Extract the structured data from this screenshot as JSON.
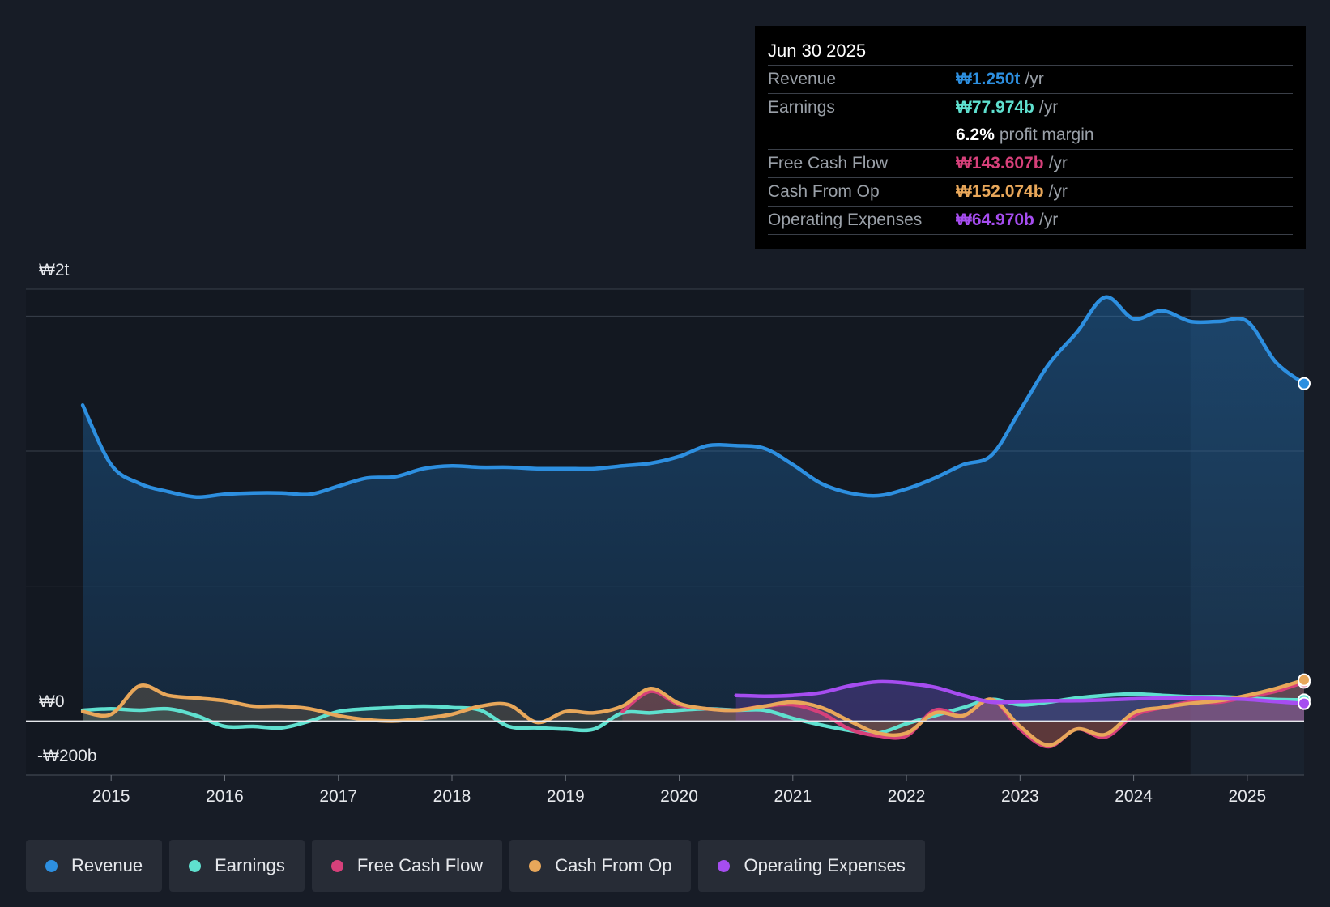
{
  "tooltip": {
    "date": "Jun 30 2025",
    "rows": [
      {
        "label": "Revenue",
        "value": "₩1.250t",
        "unit": "/yr",
        "color": "#2d8fe0"
      },
      {
        "label": "Earnings",
        "value": "₩77.974b",
        "unit": "/yr",
        "color": "#5fe0cf"
      },
      {
        "label": "",
        "value": "6.2%",
        "unit": "profit margin",
        "color": "#ffffff"
      },
      {
        "label": "Free Cash Flow",
        "value": "₩143.607b",
        "unit": "/yr",
        "color": "#d6407a"
      },
      {
        "label": "Cash From Op",
        "value": "₩152.074b",
        "unit": "/yr",
        "color": "#e8a75a"
      },
      {
        "label": "Operating Expenses",
        "value": "₩64.970b",
        "unit": "/yr",
        "color": "#a64df0"
      }
    ]
  },
  "legend": [
    {
      "label": "Revenue",
      "color": "#2d8fe0"
    },
    {
      "label": "Earnings",
      "color": "#5fe0cf"
    },
    {
      "label": "Free Cash Flow",
      "color": "#d6407a"
    },
    {
      "label": "Cash From Op",
      "color": "#e8a75a"
    },
    {
      "label": "Operating Expenses",
      "color": "#a64df0"
    }
  ],
  "chart_data": {
    "type": "line",
    "title": "",
    "xlabel": "",
    "ylabel": "",
    "y_top_label": "₩2t",
    "y_zero_label": "₩0",
    "y_bottom_label": "-₩200b",
    "ylim": [
      -200,
      1600
    ],
    "xlim": [
      2014.25,
      2025.5
    ],
    "x_ticks": [
      2015,
      2016,
      2017,
      2018,
      2019,
      2020,
      2021,
      2022,
      2023,
      2024,
      2025
    ],
    "series": [
      {
        "name": "Revenue",
        "color": "#2d8fe0",
        "x": [
          2014.75,
          2015.0,
          2015.25,
          2015.5,
          2015.75,
          2016.0,
          2016.25,
          2016.5,
          2016.75,
          2017.0,
          2017.25,
          2017.5,
          2017.75,
          2018.0,
          2018.25,
          2018.5,
          2018.75,
          2019.0,
          2019.25,
          2019.5,
          2019.75,
          2020.0,
          2020.25,
          2020.5,
          2020.75,
          2021.0,
          2021.25,
          2021.5,
          2021.75,
          2022.0,
          2022.25,
          2022.5,
          2022.75,
          2023.0,
          2023.25,
          2023.5,
          2023.75,
          2024.0,
          2024.25,
          2024.5,
          2024.75,
          2025.0,
          2025.25,
          2025.5
        ],
        "values": [
          1170,
          950,
          880,
          850,
          830,
          840,
          845,
          845,
          840,
          870,
          900,
          905,
          935,
          945,
          940,
          940,
          935,
          935,
          935,
          945,
          955,
          980,
          1020,
          1020,
          1010,
          950,
          880,
          845,
          835,
          860,
          900,
          950,
          985,
          1150,
          1320,
          1440,
          1570,
          1490,
          1520,
          1480,
          1480,
          1480,
          1330,
          1250
        ]
      },
      {
        "name": "Earnings",
        "color": "#5fe0cf",
        "x": [
          2014.75,
          2015.0,
          2015.25,
          2015.5,
          2015.75,
          2016.0,
          2016.25,
          2016.5,
          2016.75,
          2017.0,
          2017.25,
          2017.5,
          2017.75,
          2018.0,
          2018.25,
          2018.5,
          2018.75,
          2019.0,
          2019.25,
          2019.5,
          2019.75,
          2020.0,
          2020.25,
          2020.5,
          2020.75,
          2021.0,
          2021.25,
          2021.5,
          2021.75,
          2022.0,
          2022.25,
          2022.5,
          2022.75,
          2023.0,
          2023.25,
          2023.5,
          2023.75,
          2024.0,
          2024.25,
          2024.5,
          2024.75,
          2025.0,
          2025.25,
          2025.5
        ],
        "values": [
          40,
          45,
          40,
          45,
          20,
          -20,
          -20,
          -25,
          0,
          35,
          45,
          50,
          55,
          50,
          40,
          -20,
          -25,
          -30,
          -30,
          30,
          30,
          40,
          45,
          40,
          40,
          10,
          -15,
          -35,
          -45,
          -10,
          20,
          50,
          80,
          60,
          70,
          85,
          95,
          100,
          95,
          90,
          90,
          85,
          80,
          78
        ]
      },
      {
        "name": "Free Cash Flow",
        "color": "#d6407a",
        "x": [
          2019.5,
          2019.75,
          2020.0,
          2020.25,
          2020.5,
          2020.75,
          2021.0,
          2021.25,
          2021.5,
          2021.75,
          2022.0,
          2022.25,
          2022.5,
          2022.75,
          2023.0,
          2023.25,
          2023.5,
          2023.75,
          2024.0,
          2024.25,
          2024.5,
          2024.75,
          2025.0,
          2025.25,
          2025.5
        ],
        "values": [
          35,
          110,
          60,
          45,
          40,
          55,
          60,
          30,
          -30,
          -55,
          -55,
          40,
          20,
          80,
          -30,
          -95,
          -30,
          -60,
          20,
          50,
          70,
          70,
          90,
          110,
          144
        ]
      },
      {
        "name": "Cash From Op",
        "color": "#e8a75a",
        "x": [
          2014.75,
          2015.0,
          2015.25,
          2015.5,
          2015.75,
          2016.0,
          2016.25,
          2016.5,
          2016.75,
          2017.0,
          2017.25,
          2017.5,
          2017.75,
          2018.0,
          2018.25,
          2018.5,
          2018.75,
          2019.0,
          2019.25,
          2019.5,
          2019.75,
          2020.0,
          2020.25,
          2020.5,
          2020.75,
          2021.0,
          2021.25,
          2021.5,
          2021.75,
          2022.0,
          2022.25,
          2022.5,
          2022.75,
          2023.0,
          2023.25,
          2023.5,
          2023.75,
          2024.0,
          2024.25,
          2024.5,
          2024.75,
          2025.0,
          2025.25,
          2025.5
        ],
        "values": [
          35,
          25,
          130,
          95,
          85,
          75,
          55,
          55,
          45,
          20,
          5,
          0,
          10,
          25,
          55,
          60,
          -5,
          35,
          30,
          55,
          120,
          65,
          45,
          40,
          55,
          70,
          50,
          0,
          -45,
          -45,
          30,
          20,
          80,
          -20,
          -90,
          -30,
          -50,
          30,
          50,
          65,
          75,
          95,
          120,
          152
        ]
      },
      {
        "name": "Operating Expenses",
        "color": "#a64df0",
        "x": [
          2020.5,
          2020.75,
          2021.0,
          2021.25,
          2021.5,
          2021.75,
          2022.0,
          2022.25,
          2022.5,
          2022.75,
          2023.0,
          2023.25,
          2023.5,
          2023.75,
          2024.0,
          2024.25,
          2024.5,
          2024.75,
          2025.0,
          2025.25,
          2025.5
        ],
        "values": [
          95,
          92,
          95,
          105,
          130,
          145,
          140,
          125,
          95,
          70,
          72,
          75,
          75,
          78,
          82,
          85,
          85,
          83,
          80,
          72,
          65
        ]
      }
    ],
    "forecast_from": 2024.5,
    "hover_date": "Jun 30 2025"
  }
}
